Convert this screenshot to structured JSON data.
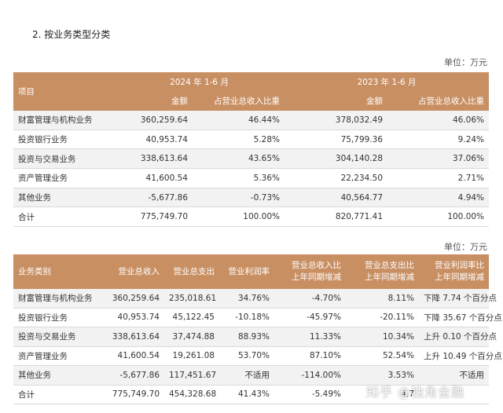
{
  "section_title": "2. 按业务类型分类",
  "unit_label_1": "单位：万元",
  "unit_label_2": "单位：万元",
  "table1": {
    "header_item": "项目",
    "period_2024": "2024 年 1-6 月",
    "period_2023": "2023 年 1-6 月",
    "col_amount": "金额",
    "col_ratio": "占营业总收入比重",
    "rows": [
      [
        "财富管理与机构业务",
        "360,259.64",
        "46.44%",
        "378,032.49",
        "46.06%"
      ],
      [
        "投资银行业务",
        "40,953.74",
        "5.28%",
        "75,799.36",
        "9.24%"
      ],
      [
        "投资与交易业务",
        "338,613.64",
        "43.65%",
        "304,140.28",
        "37.06%"
      ],
      [
        "资产管理业务",
        "41,600.54",
        "5.36%",
        "22,234.50",
        "2.71%"
      ],
      [
        "其他业务",
        "-5,677.86",
        "-0.73%",
        "40,564.77",
        "4.94%"
      ],
      [
        "合计",
        "775,749.70",
        "100.00%",
        "820,771.41",
        "100.00%"
      ]
    ]
  },
  "table2": {
    "headers": [
      "业务类别",
      "营业总收入",
      "营业总支出",
      "营业利润率",
      "营业总收入比上年同期增减",
      "营业总支出比上年同期增减",
      "营业利润率比上年同期增减"
    ],
    "header_lines": [
      [
        "业务类别",
        ""
      ],
      [
        "营业总收入",
        ""
      ],
      [
        "营业总支出",
        ""
      ],
      [
        "营业利润率",
        ""
      ],
      [
        "营业总收入比",
        "上年同期增减"
      ],
      [
        "营业总支出比",
        "上年同期增减"
      ],
      [
        "营业利润率比",
        "上年同期增减"
      ]
    ],
    "rows": [
      [
        "财富管理与机构业务",
        "360,259.64",
        "235,018.61",
        "34.76%",
        "-4.70%",
        "8.11%",
        "下降 7.74 个百分点"
      ],
      [
        "投资银行业务",
        "40,953.74",
        "45,122.45",
        "-10.18%",
        "-45.97%",
        "-20.11%",
        "下降 35.67 个百分点"
      ],
      [
        "投资与交易业务",
        "338,613.64",
        "37,474.88",
        "88.93%",
        "11.33%",
        "10.34%",
        "上升 0.10 个百分点"
      ],
      [
        "资产管理业务",
        "41,600.54",
        "19,261.08",
        "53.70%",
        "87.10%",
        "52.54%",
        "上升 10.49 个百分点"
      ],
      [
        "其他业务",
        "-5,677.86",
        "117,451.67",
        "不适用",
        "-114.00%",
        "3.53%",
        "不适用"
      ],
      [
        "合计",
        "775,749.70",
        "454,328.68",
        "41.43%",
        "-5.49%",
        "4.7",
        ""
      ]
    ]
  },
  "watermark": "知乎 @独角金融"
}
